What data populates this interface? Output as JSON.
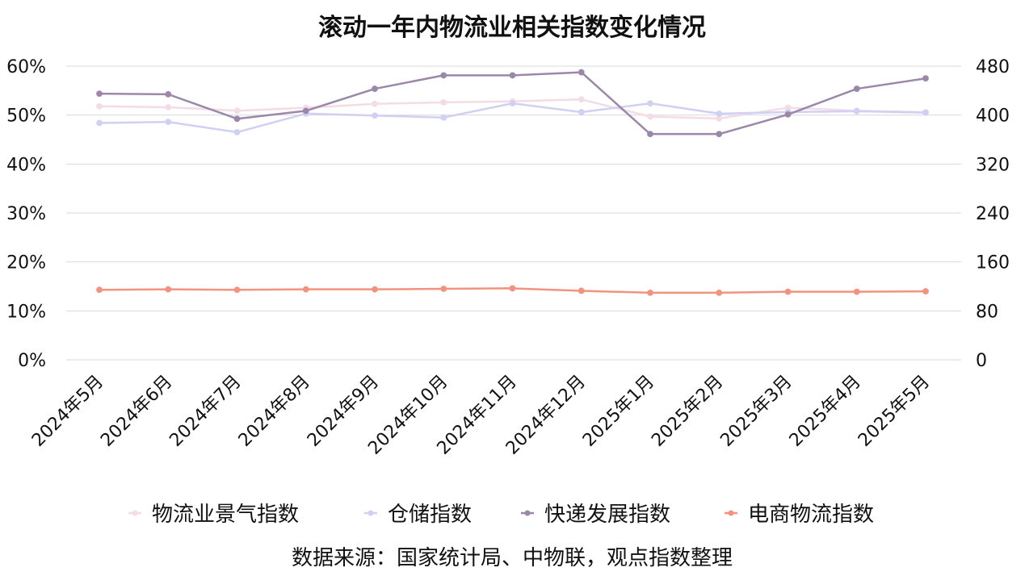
{
  "chart_data": {
    "type": "line",
    "title": "滚动一年内物流业相关指数变化情况",
    "categories": [
      "2024年5月",
      "2024年6月",
      "2024年7月",
      "2024年8月",
      "2024年9月",
      "2024年10月",
      "2024年11月",
      "2024年12月",
      "2025年1月",
      "2025年2月",
      "2025年3月",
      "2025年4月",
      "2025年5月"
    ],
    "y_left": {
      "ticks": [
        "60%",
        "50%",
        "40%",
        "30%",
        "20%",
        "10%",
        "0%"
      ],
      "range": [
        0,
        60
      ]
    },
    "y_right": {
      "ticks": [
        "480",
        "400",
        "320",
        "240",
        "160",
        "80",
        "0"
      ],
      "range": [
        0,
        480
      ]
    },
    "series": [
      {
        "name": "物流业景气指数",
        "axis": "left",
        "color": "#f3dce6",
        "values": [
          51.8,
          51.6,
          50.9,
          51.5,
          52.3,
          52.6,
          52.8,
          53.2,
          49.7,
          49.3,
          51.5,
          50.9,
          50.6
        ]
      },
      {
        "name": "仓储指数",
        "axis": "left",
        "color": "#cfd0f3",
        "values": [
          48.4,
          48.6,
          46.5,
          50.3,
          49.9,
          49.5,
          52.4,
          50.6,
          52.4,
          50.3,
          50.6,
          50.8,
          50.5
        ]
      },
      {
        "name": "快递发展指数",
        "axis": "right",
        "color": "#9b88a9",
        "values": [
          435,
          434,
          394,
          407,
          443,
          465,
          465,
          470,
          369,
          369,
          401,
          443,
          460
        ]
      },
      {
        "name": "电商物流指数",
        "axis": "left",
        "color": "#f2937f",
        "values": [
          14.3,
          14.4,
          14.3,
          14.4,
          14.4,
          14.5,
          14.6,
          14.1,
          13.7,
          13.7,
          13.9,
          13.9,
          14.0
        ]
      }
    ],
    "grid": true,
    "legend_position": "bottom",
    "source": "数据来源：国家统计局、中物联，观点指数整理"
  }
}
